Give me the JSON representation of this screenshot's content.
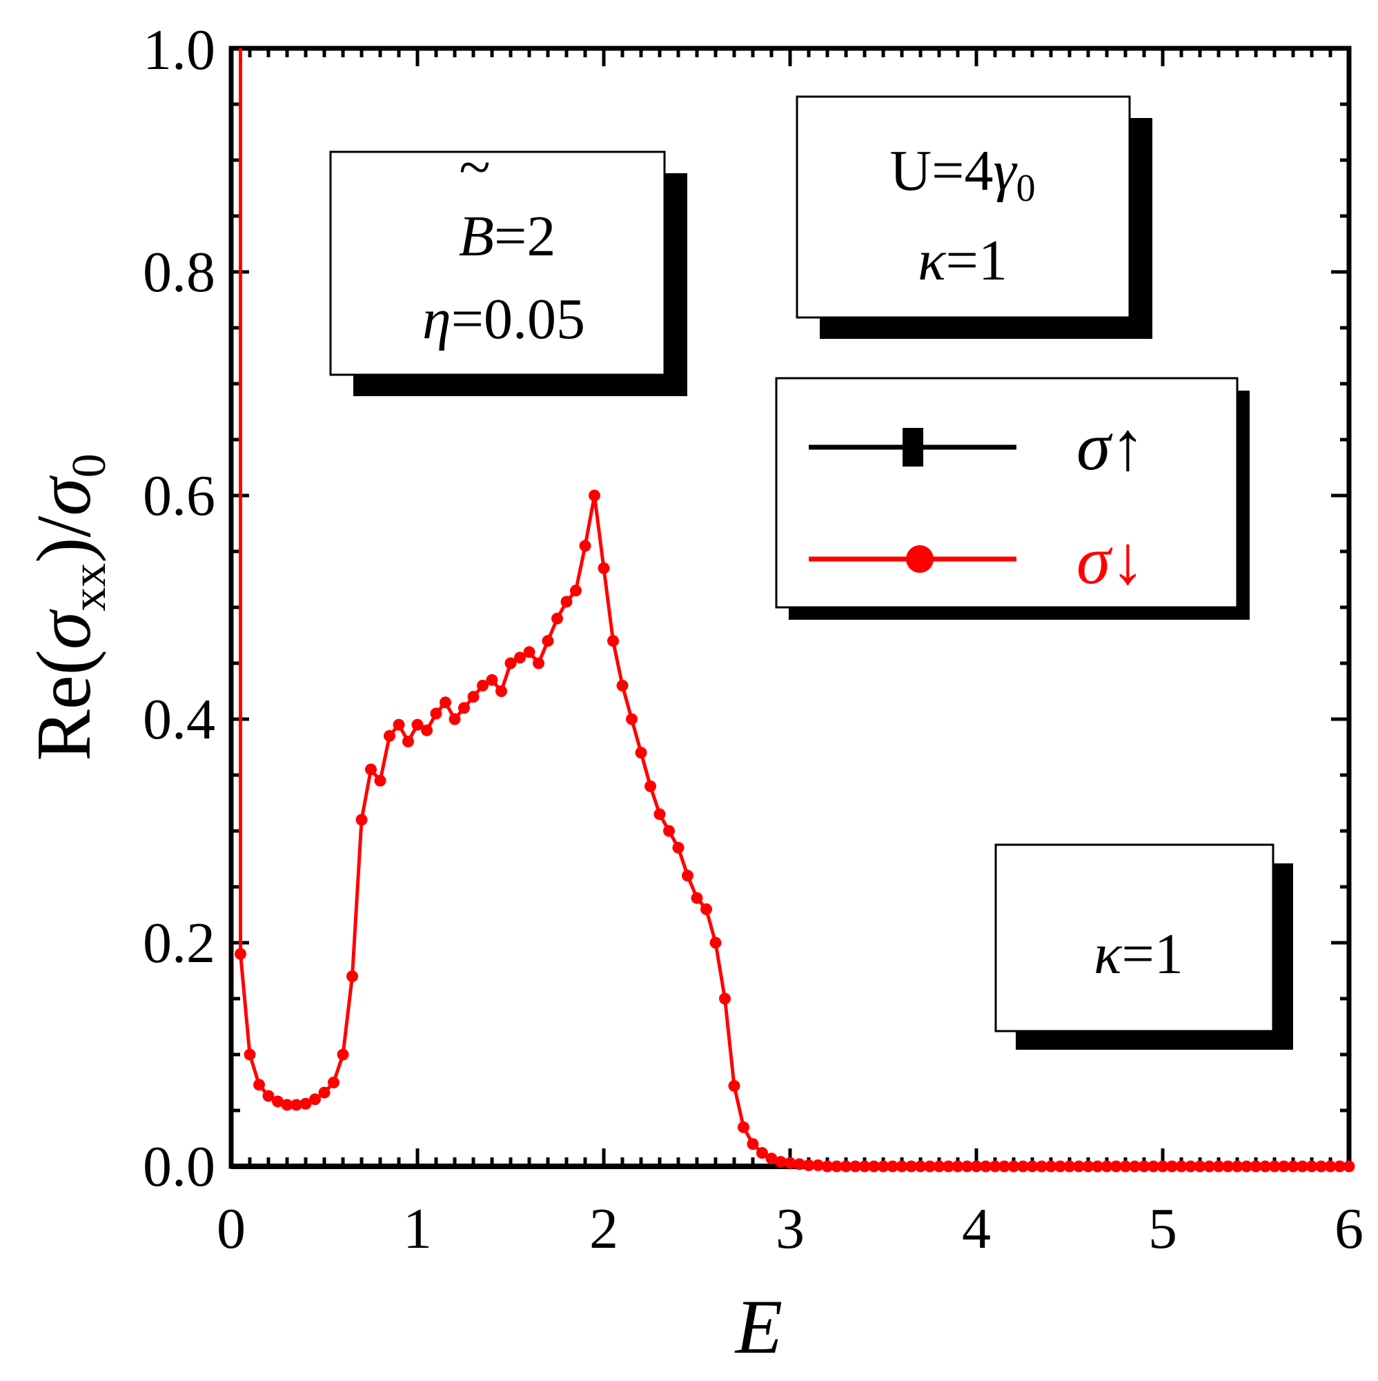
{
  "chart_data": {
    "type": "line",
    "xlabel": "E",
    "ylabel": {
      "prefix": "Re(",
      "sigma": "σ",
      "sub": "xx",
      "mid": ")/",
      "sigma0": "σ",
      "sub0": "0"
    },
    "xlim": [
      0,
      6
    ],
    "ylim": [
      0,
      1.0
    ],
    "x_ticks": [
      "0",
      "1",
      "2",
      "3",
      "4",
      "5",
      "6"
    ],
    "y_ticks": [
      "0.0",
      "0.2",
      "0.4",
      "0.6",
      "0.8",
      "1.0"
    ],
    "grid": false,
    "legend_position": "right, upper-middle",
    "series": [
      {
        "name": "σ↑",
        "color": "#000000",
        "marker": "square",
        "x": [
          0.0,
          6.0
        ],
        "y": [
          0.0,
          0.0
        ]
      },
      {
        "name": "σ↓",
        "color": "#ff0000",
        "marker": "circle",
        "vertical_spike": {
          "x": 0.05,
          "y_top": 1.0
        },
        "x": [
          0.05,
          0.1,
          0.15,
          0.2,
          0.25,
          0.3,
          0.35,
          0.4,
          0.45,
          0.5,
          0.55,
          0.6,
          0.65,
          0.7,
          0.75,
          0.8,
          0.85,
          0.9,
          0.95,
          1.0,
          1.05,
          1.1,
          1.15,
          1.2,
          1.25,
          1.3,
          1.35,
          1.4,
          1.45,
          1.5,
          1.55,
          1.6,
          1.65,
          1.7,
          1.75,
          1.8,
          1.85,
          1.9,
          1.95,
          2.0,
          2.05,
          2.1,
          2.15,
          2.2,
          2.25,
          2.3,
          2.35,
          2.4,
          2.45,
          2.5,
          2.55,
          2.6,
          2.65,
          2.7,
          2.75,
          2.8,
          2.85,
          2.9,
          2.95,
          3.0,
          3.05,
          3.1,
          3.15,
          3.2,
          3.25,
          3.3,
          3.35,
          3.4,
          3.45,
          3.5,
          3.55,
          3.6,
          3.65,
          3.7,
          3.75,
          3.8,
          3.85,
          3.9,
          3.95,
          4.0,
          4.05,
          4.1,
          4.15,
          4.2,
          4.25,
          4.3,
          4.35,
          4.4,
          4.45,
          4.5,
          4.55,
          4.6,
          4.65,
          4.7,
          4.75,
          4.8,
          4.85,
          4.9,
          4.95,
          5.0,
          5.05,
          5.1,
          5.15,
          5.2,
          5.25,
          5.3,
          5.35,
          5.4,
          5.45,
          5.5,
          5.55,
          5.6,
          5.65,
          5.7,
          5.75,
          5.8,
          5.85,
          5.9,
          5.95,
          6.0
        ],
        "y": [
          0.19,
          0.1,
          0.073,
          0.063,
          0.058,
          0.055,
          0.055,
          0.056,
          0.06,
          0.066,
          0.075,
          0.1,
          0.17,
          0.31,
          0.355,
          0.345,
          0.385,
          0.395,
          0.38,
          0.395,
          0.39,
          0.405,
          0.415,
          0.4,
          0.41,
          0.42,
          0.43,
          0.435,
          0.425,
          0.45,
          0.455,
          0.46,
          0.45,
          0.47,
          0.49,
          0.505,
          0.515,
          0.555,
          0.6,
          0.535,
          0.47,
          0.43,
          0.4,
          0.37,
          0.34,
          0.315,
          0.3,
          0.285,
          0.26,
          0.24,
          0.23,
          0.2,
          0.15,
          0.072,
          0.035,
          0.02,
          0.012,
          0.007,
          0.004,
          0.003,
          0.002,
          0.001,
          0.001,
          0.0,
          0.0,
          0.0,
          0.0,
          0.0,
          0.0,
          0.0,
          0.0,
          0.0,
          0.0,
          0.0,
          0.0,
          0.0,
          0.0,
          0.0,
          0.0,
          0.0,
          0.0,
          0.0,
          0.0,
          0.0,
          0.0,
          0.0,
          0.0,
          0.0,
          0.0,
          0.0,
          0.0,
          0.0,
          0.0,
          0.0,
          0.0,
          0.0,
          0.0,
          0.0,
          0.0,
          0.0,
          0.0,
          0.0,
          0.0,
          0.0,
          0.0,
          0.0,
          0.0,
          0.0,
          0.0,
          0.0,
          0.0,
          0.0,
          0.0,
          0.0,
          0.0,
          0.0,
          0.0,
          0.0,
          0.0,
          0.0
        ]
      }
    ],
    "annotations": {
      "box1": {
        "line1_var": "B",
        "line1_tilde": "~",
        "line1_val": "=2",
        "line2_var": "η",
        "line2_val": "=0.05"
      },
      "box2": {
        "line1": "U=4",
        "line1_gamma": "γ",
        "line1_sub": "0",
        "line2_var": "κ",
        "line2_val": "=1"
      },
      "box3": {
        "line1_var": "κ",
        "line1_val": "=1"
      }
    }
  }
}
